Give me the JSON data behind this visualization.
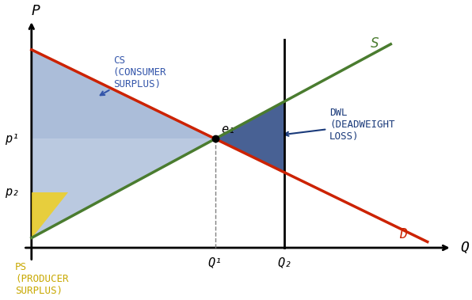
{
  "title": "",
  "background_color": "#ffffff",
  "axes_color": "#000000",
  "supply_color": "#4a7c2f",
  "demand_color": "#cc2200",
  "supply_label": "S",
  "demand_label": "D",
  "q1": 0.45,
  "q2": 0.62,
  "p1": 0.55,
  "p2": 0.28,
  "p_intercept_demand": 1.0,
  "p_intercept_supply": 0.05,
  "cs_color": "#6688bb",
  "cs_alpha": 0.55,
  "ps_color": "#6688bb",
  "ps_alpha": 0.45,
  "ps_yellow_color": "#f0d020",
  "ps_yellow_alpha": 0.85,
  "dwl_color": "#1a3a7a",
  "dwl_alpha": 0.8,
  "annotation_cs": "CS\n(CONSUMER\nSURPLUS)",
  "annotation_ps": "PS\n(PRODUCER\nSURPLUS)",
  "annotation_dwl": "DWL\n(DEADWEIGHT\nLOSS)",
  "label_e1": "e₁",
  "label_p1": "p¹",
  "label_p2": "p₂",
  "label_q1": "Q¹",
  "label_q2": "Q₂",
  "label_P": "P",
  "label_Q": "Q",
  "figsize": [
    5.96,
    3.79
  ],
  "dpi": 100
}
